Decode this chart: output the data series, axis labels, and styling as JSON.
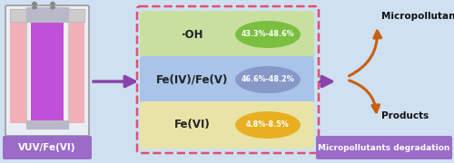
{
  "bg_color": "#cfe0f0",
  "title_label": "VUV/Fe(VI)",
  "right_label": "Micropollutants degradation",
  "box_colors": [
    "#c8dfa0",
    "#a8c4e8",
    "#e8e4a8"
  ],
  "ellipse_colors": [
    "#7abf40",
    "#8898c8",
    "#e8b020"
  ],
  "box_labels": [
    "·OH",
    "Fe(IV)/Fe(V)",
    "Fe(VI)"
  ],
  "ellipse_labels": [
    "43.3%-48.6%",
    "46.6%-48.2%",
    "4.8%-8.5%"
  ],
  "arrow_color": "#8844aa",
  "curved_arrow_color": "#c86010",
  "top_right_label": "Micropollutants",
  "bottom_right_label": "Products",
  "dashed_box_color": "#e05070",
  "purple_box_color": "#9b6bc8"
}
